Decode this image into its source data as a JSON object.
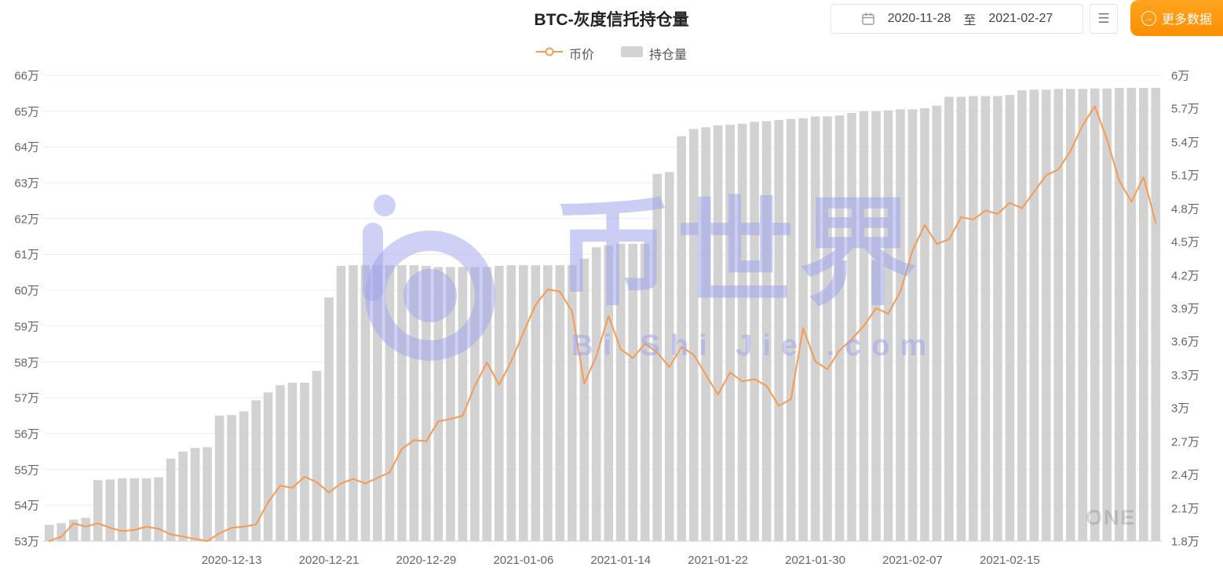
{
  "header": {
    "title": "BTC-灰度信托持仓量",
    "date_start": "2020-11-28",
    "date_separator": "至",
    "date_end": "2021-02-27",
    "more_data_label": "更多数据"
  },
  "legend": {
    "price_label": "币价",
    "holdings_label": "持仓量"
  },
  "watermark": {
    "brand": "币世界",
    "sub": "Bi Shi Jie .com",
    "corner": "ONE"
  },
  "colors": {
    "bar": "#d2d2d2",
    "line": "#f79a52",
    "accent_orange": "#fe9800",
    "watermark": "#9ea4eb",
    "grid": "#ededed",
    "axis_text": "#666666"
  },
  "chart_data": {
    "type": "bar",
    "title": "BTC-灰度信托持仓量",
    "x_tick_labels": [
      "2020-12-13",
      "2020-12-21",
      "2020-12-29",
      "2021-01-06",
      "2021-01-14",
      "2021-01-22",
      "2021-01-30",
      "2021-02-07",
      "2021-02-15"
    ],
    "x_tick_indices": [
      15,
      23,
      31,
      39,
      47,
      55,
      63,
      71,
      79
    ],
    "x_range": [
      "2020-11-28",
      "2021-02-27"
    ],
    "left_axis": {
      "min": 53,
      "max": 66,
      "unit": "万",
      "labels": [
        "66万",
        "65万",
        "64万",
        "63万",
        "62万",
        "61万",
        "60万",
        "59万",
        "58万",
        "57万",
        "56万",
        "55万",
        "54万",
        "53万"
      ]
    },
    "right_axis": {
      "min": 1.8,
      "max": 6,
      "unit": "万",
      "labels": [
        "6万",
        "5.7万",
        "5.4万",
        "5.1万",
        "4.8万",
        "4.5万",
        "4.2万",
        "3.9万",
        "3.6万",
        "3.3万",
        "3万",
        "2.7万",
        "2.4万",
        "2.1万",
        "1.8万"
      ]
    },
    "series": [
      {
        "name": "持仓量",
        "type": "bar",
        "axis": "left",
        "color": "#d2d2d2",
        "values": [
          53.45,
          53.5,
          53.6,
          53.65,
          54.7,
          54.72,
          54.75,
          54.75,
          54.75,
          54.78,
          55.3,
          55.5,
          55.6,
          55.62,
          56.5,
          56.52,
          56.62,
          56.93,
          57.15,
          57.35,
          57.42,
          57.42,
          57.75,
          59.8,
          60.68,
          60.7,
          60.7,
          60.7,
          60.7,
          60.7,
          60.7,
          60.68,
          60.65,
          60.65,
          60.65,
          60.65,
          60.65,
          60.68,
          60.7,
          60.7,
          60.7,
          60.7,
          60.7,
          60.7,
          60.88,
          61.2,
          61.25,
          61.3,
          61.3,
          61.3,
          63.25,
          63.3,
          64.3,
          64.5,
          64.55,
          64.6,
          64.62,
          64.65,
          64.7,
          64.72,
          64.75,
          64.78,
          64.8,
          64.85,
          64.85,
          64.88,
          64.95,
          65.0,
          65.0,
          65.02,
          65.05,
          65.05,
          65.08,
          65.15,
          65.4,
          65.4,
          65.42,
          65.42,
          65.42,
          65.45,
          65.58,
          65.6,
          65.6,
          65.62,
          65.62,
          65.62,
          65.63,
          65.63,
          65.65,
          65.65,
          65.65,
          65.65
        ]
      },
      {
        "name": "币价",
        "type": "line",
        "axis": "right",
        "color": "#f79a52",
        "values": [
          1.8,
          1.84,
          1.96,
          1.93,
          1.96,
          1.92,
          1.89,
          1.9,
          1.93,
          1.91,
          1.86,
          1.84,
          1.82,
          1.8,
          1.87,
          1.92,
          1.93,
          1.95,
          2.15,
          2.3,
          2.28,
          2.38,
          2.33,
          2.24,
          2.32,
          2.36,
          2.32,
          2.37,
          2.42,
          2.63,
          2.71,
          2.7,
          2.88,
          2.9,
          2.93,
          3.2,
          3.41,
          3.21,
          3.42,
          3.68,
          3.93,
          4.07,
          4.05,
          3.87,
          3.22,
          3.47,
          3.83,
          3.53,
          3.45,
          3.58,
          3.5,
          3.37,
          3.55,
          3.48,
          3.3,
          3.12,
          3.32,
          3.24,
          3.26,
          3.2,
          3.02,
          3.08,
          3.72,
          3.42,
          3.35,
          3.52,
          3.62,
          3.74,
          3.9,
          3.85,
          4.05,
          4.42,
          4.65,
          4.48,
          4.52,
          4.72,
          4.7,
          4.78,
          4.75,
          4.85,
          4.8,
          4.95,
          5.1,
          5.15,
          5.32,
          5.55,
          5.72,
          5.42,
          5.05,
          4.86,
          5.08,
          4.67
        ]
      }
    ]
  }
}
